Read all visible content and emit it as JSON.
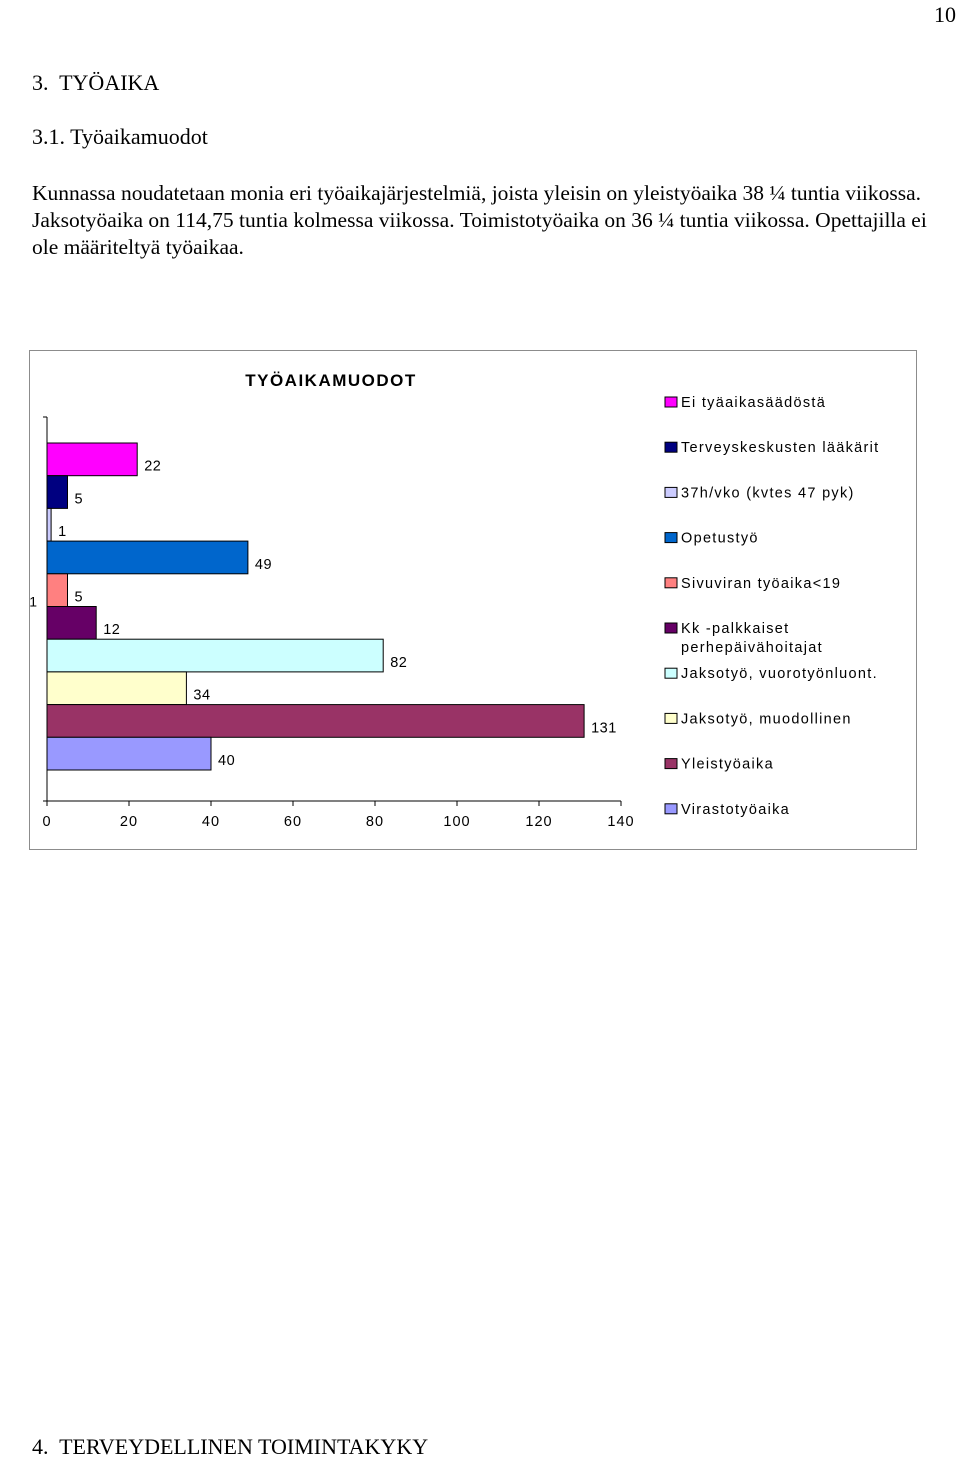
{
  "page": {
    "number": "10"
  },
  "section": {
    "heading": "3.  TYÖAIKA",
    "subheading": "3.1. Työaikamuodot"
  },
  "paragraph": "Kunnassa noudatetaan monia eri työaikajärjestelmiä, joista yleisin on yleistyöaika 38 ¼ tuntia viikossa. Jaksotyöaika on 114,75 tuntia kolmessa viikossa. Toimistotyöaika on 36 ¼ tuntia viikossa. Opettajilla ei ole määriteltyä työaikaa.",
  "next_section": {
    "heading": "4.  TERVEYDELLINEN TOIMINTAKYKY"
  },
  "chart_data": {
    "type": "bar",
    "orientation": "horizontal",
    "title": "TYÖAIKAMUODOT",
    "categories": [
      "1"
    ],
    "xlim": [
      0,
      140
    ],
    "xticks": [
      "0",
      "20",
      "40",
      "60",
      "80",
      "100",
      "120",
      "140"
    ],
    "grid": false,
    "legend_position": "right",
    "series": [
      {
        "name": "Ei tyäaikasäädöstä",
        "value": 22,
        "color": "#ff00ff"
      },
      {
        "name": "Terveyskeskusten lääkärit",
        "value": 5,
        "color": "#000080"
      },
      {
        "name": "37h/vko (kvtes 47 pyk)",
        "value": 1,
        "color": "#ccccff"
      },
      {
        "name": "Opetustyö",
        "value": 49,
        "color": "#0066cc"
      },
      {
        "name": "Sivuviran työaika<19",
        "value": 5,
        "color": "#ff8080"
      },
      {
        "name": "Kk -palkkaiset perhepäivähoitajat",
        "value": 12,
        "color": "#660066"
      },
      {
        "name": "Jaksotyö, vuorotyönluont.",
        "value": 82,
        "color": "#ccffff"
      },
      {
        "name": "Jaksotyö, muodollinen",
        "value": 34,
        "color": "#ffffcc"
      },
      {
        "name": "Yleistyöaika",
        "value": 131,
        "color": "#993366"
      },
      {
        "name": "Virastotyöaika",
        "value": 40,
        "color": "#9999ff"
      }
    ]
  }
}
